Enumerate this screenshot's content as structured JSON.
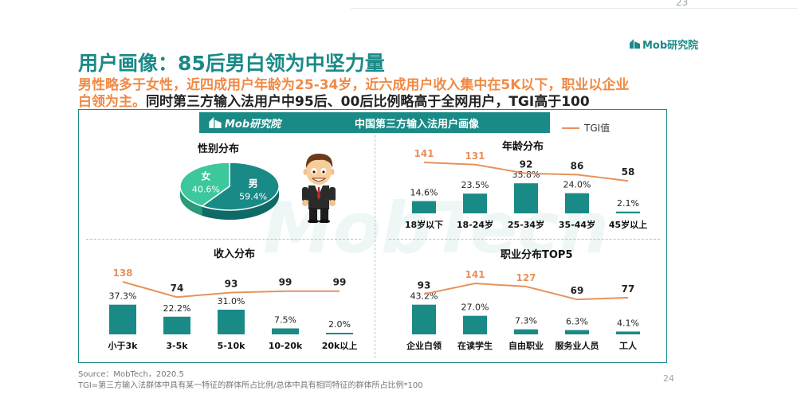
{
  "page_number_top": "23",
  "page_number_bottom": "24",
  "title": "用户画像：85后男白领为中坚力量",
  "logo_text": "Mob研究院",
  "subtitle_line1": "男性略多于女性，近四成用户年龄为25-34岁，近六成用户收入集中在5K以下，职业以企业",
  "subtitle_line2_orange": "白领为主。",
  "subtitle_line2_black": "同时第三方输入法用户中95后、00后比例略高于全网用户，TGI高于100",
  "banner": {
    "logo": "Mob研究院",
    "title": "中国第三方输入法用户画像"
  },
  "legend_tgi": "TGI值",
  "watermark": "MobTech",
  "colors": {
    "teal": "#1a8a86",
    "orange": "#e7925c",
    "female": "#3cc79c"
  },
  "icons": [
    "mob-logo-icon",
    "businessman-illustration"
  ],
  "chart_data": [
    {
      "type": "pie",
      "title": "性别分布",
      "slices": [
        {
          "label": "男",
          "value": 59.4,
          "display": "59.4%"
        },
        {
          "label": "女",
          "value": 40.6,
          "display": "40.6%"
        }
      ]
    },
    {
      "type": "bar",
      "title": "年龄分布",
      "categories": [
        "18岁以下",
        "18-24岁",
        "25-34岁",
        "35-44岁",
        "45岁以上"
      ],
      "values": [
        14.6,
        23.5,
        35.8,
        24.0,
        2.1
      ],
      "value_labels": [
        "14.6%",
        "23.5%",
        "35.8%",
        "24.0%",
        "2.1%"
      ],
      "tgi": [
        141,
        131,
        92,
        86,
        58
      ],
      "tgi_labels": [
        "141",
        "131",
        "92",
        "86",
        "58"
      ],
      "tgi_highlight": [
        true,
        true,
        false,
        false,
        false
      ]
    },
    {
      "type": "bar",
      "title": "收入分布",
      "categories": [
        "小于3k",
        "3-5k",
        "5-10k",
        "10-20k",
        "20k以上"
      ],
      "values": [
        37.3,
        22.2,
        31.0,
        7.5,
        2.0
      ],
      "value_labels": [
        "37.3%",
        "22.2%",
        "31.0%",
        "7.5%",
        "2.0%"
      ],
      "tgi": [
        138,
        74,
        93,
        99,
        99
      ],
      "tgi_labels": [
        "138",
        "74",
        "93",
        "99",
        "99"
      ],
      "tgi_highlight": [
        true,
        false,
        false,
        false,
        false
      ]
    },
    {
      "type": "bar",
      "title": "职业分布TOP5",
      "categories": [
        "企业白领",
        "在读学生",
        "自由职业",
        "服务业人员",
        "工人"
      ],
      "values": [
        43.2,
        27.0,
        7.3,
        6.3,
        4.1
      ],
      "value_labels": [
        "43.2%",
        "27.0%",
        "7.3%",
        "6.3%",
        "4.1%"
      ],
      "tgi": [
        93,
        141,
        127,
        69,
        77
      ],
      "tgi_labels": [
        "93",
        "141",
        "127",
        "69",
        "77"
      ],
      "tgi_highlight": [
        false,
        true,
        true,
        false,
        false
      ]
    }
  ],
  "footer_source": "Source：MobTech，2020.5",
  "footer_note": "TGI=第三方输入法群体中具有某一特征的群体所占比例/总体中具有相同特征的群体所占比例*100"
}
